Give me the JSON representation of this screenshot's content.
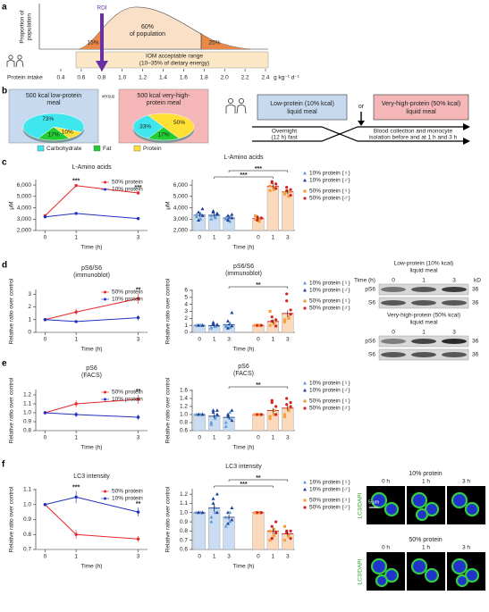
{
  "panel_labels": [
    "a",
    "b",
    "c",
    "d",
    "e",
    "f"
  ],
  "panel_a": {
    "y_label_lines": [
      "Proportion of",
      "population"
    ],
    "rdi": "RDI",
    "left_pct": "15%",
    "center_lines": [
      "60%",
      "of population"
    ],
    "right_pct": "25%",
    "iom_lines": [
      "IOM acceptable range",
      "(10–35% of dietary energy)"
    ],
    "x_label": "Protein intake",
    "ticks": [
      0.4,
      0.6,
      0.8,
      {
        "value": 1,
        "label": "1.0"
      },
      1.2,
      1.4,
      1.6,
      1.8,
      {
        "value": 2,
        "label": "2.0"
      },
      2.2,
      2.4
    ],
    "unit": "g kg⁻¹ d⁻¹"
  },
  "panel_b": {
    "versus": "versus",
    "legend": [
      "Carbohydrate",
      "Fat",
      "Protein"
    ],
    "legend_colors": [
      "#3ee6ee",
      "#22cc33",
      "#ffe033"
    ],
    "low_lines": [
      "Low-protein (10% kcal)",
      "liquid meal"
    ],
    "or": "or",
    "high_lines": [
      "Very-high-protein (50% kcal)",
      "liquid meal"
    ],
    "fast_lines": [
      "Overnight",
      "(12 h) fast"
    ],
    "blood_lines": [
      "Blood collection and monocyte",
      "isolation before and at 1 h and 3 h"
    ]
  },
  "chart_data": [
    {
      "type": "line",
      "title": "L-Amino acids",
      "y_label": "μM",
      "x_label": "Time (h)",
      "x": [
        0,
        1,
        3
      ],
      "xlim": [
        -0.3,
        3.3
      ],
      "xticks": [
        0,
        1,
        3
      ],
      "ylim": [
        2000,
        6400
      ],
      "yticks": [
        {
          "value": 2000,
          "label": "2,000"
        },
        {
          "value": 3000,
          "label": "3,000"
        },
        {
          "value": 4000,
          "label": "4,000"
        },
        {
          "value": 5000,
          "label": "5,000"
        },
        {
          "value": 6000,
          "label": "6,000"
        }
      ],
      "legend": "upper right",
      "series": [
        {
          "name": "50% protein",
          "color": "#e8262a",
          "values": [
            3300,
            5950,
            5300
          ],
          "errors": [
            150,
            100,
            150
          ]
        },
        {
          "name": "10% protein",
          "color": "#1f2fbf",
          "values": [
            3200,
            3500,
            3050
          ],
          "errors": [
            100,
            80,
            100
          ]
        }
      ],
      "significance": [
        {
          "x": 1,
          "label": "***"
        },
        {
          "x": 3,
          "label": "***"
        }
      ]
    },
    {
      "type": "bar",
      "title": "L-Amino acids",
      "y_label": "μM",
      "x_label": "Time (h)",
      "categories": [
        "0",
        "1",
        "3"
      ],
      "ylim": [
        2000,
        6400
      ],
      "yticks": [
        {
          "value": 2000,
          "label": "2,000"
        },
        {
          "value": 3000,
          "label": "3,000"
        },
        {
          "value": 4000,
          "label": "4,000"
        },
        {
          "value": 5000,
          "label": "5,000"
        },
        {
          "value": 6000,
          "label": "6,000"
        }
      ],
      "series": [
        {
          "fill": "#c9dcf2",
          "values": [
            3350,
            3350,
            3100
          ],
          "errors": [
            200,
            150,
            150
          ],
          "points": [
            [
              3400,
              3600,
              3000,
              3900,
              3200,
              2900,
              3500,
              3300
            ],
            [
              3300,
              3700,
              3100,
              3500,
              3000,
              3600,
              3200,
              3400
            ],
            [
              3000,
              3300,
              2800,
              3400,
              3100,
              2900,
              3200,
              3100
            ]
          ]
        },
        {
          "fill": "#fbd9bd",
          "values": [
            3050,
            5900,
            5400
          ],
          "errors": [
            150,
            200,
            200
          ],
          "points": [
            [
              3000,
              3200,
              2800,
              3100,
              3300,
              2900,
              3000,
              3100
            ],
            [
              5900,
              6300,
              5600,
              6100,
              5500,
              6200,
              5800,
              5700
            ],
            [
              5300,
              5800,
              5000,
              5600,
              5200,
              5500,
              5400,
              5100
            ]
          ]
        }
      ],
      "legend_items": [
        {
          "label": "10% protein (♀)",
          "marker": "triangle",
          "color": "#5b9bd5"
        },
        {
          "label": "10% protein (♂)",
          "marker": "triangle",
          "color": "#1f3f99"
        },
        {
          "label": "50% protein (♀)",
          "marker": "square",
          "color": "#f4a042"
        },
        {
          "label": "50% protein (♂)",
          "marker": "circle",
          "color": "#d42020"
        }
      ],
      "brackets": [
        {
          "from": 1,
          "to": 4,
          "label": "***"
        },
        {
          "from": 2,
          "to": 5,
          "label": "***"
        }
      ]
    },
    {
      "type": "line",
      "title": "pS6/S6",
      "subtitle": "(immunoblot)",
      "y_label": "Relative ratio over control",
      "x_label": "Time (h)",
      "x": [
        0,
        1,
        3
      ],
      "xlim": [
        -0.3,
        3.3
      ],
      "xticks": [
        0,
        1,
        3
      ],
      "ylim": [
        0,
        3.3
      ],
      "yticks": [
        0,
        1,
        2,
        3
      ],
      "legend": "upper right",
      "series": [
        {
          "name": "50% protein",
          "color": "#e8262a",
          "values": [
            1,
            1.6,
            2.65
          ],
          "errors": [
            0.05,
            0.25,
            0.4
          ]
        },
        {
          "name": "10% protein",
          "color": "#1f2fbf",
          "values": [
            1,
            0.85,
            1.15
          ],
          "errors": [
            0.05,
            0.1,
            0.2
          ]
        }
      ],
      "significance": [
        {
          "x": 3,
          "label": "**"
        }
      ]
    },
    {
      "type": "bar",
      "title": "pS6/S6",
      "subtitle": "(immunoblot)",
      "y_label": "Relative ratio over control",
      "x_label": "Time (h)",
      "categories": [
        "0",
        "1",
        "3"
      ],
      "ylim": [
        0,
        6
      ],
      "yticks": [
        0,
        1,
        2,
        3,
        4,
        5,
        6
      ],
      "series": [
        {
          "fill": "#c9dcf2",
          "values": [
            1,
            0.95,
            1.1
          ],
          "errors": [
            0.05,
            0.15,
            0.2
          ],
          "points": [
            [
              1,
              1,
              1,
              1,
              1,
              1,
              1,
              1
            ],
            [
              0.6,
              1.2,
              0.8,
              1.0,
              0.7,
              1.4,
              0.9,
              1.1
            ],
            [
              0.8,
              1.6,
              0.7,
              2.8,
              1.0,
              0.6,
              1.3,
              0.9
            ]
          ]
        },
        {
          "fill": "#fbd9bd",
          "values": [
            1,
            1.55,
            2.7
          ],
          "errors": [
            0.05,
            0.3,
            0.45
          ],
          "points": [
            [
              1,
              1,
              1,
              1,
              1,
              1,
              1,
              1
            ],
            [
              1.0,
              2.2,
              1.4,
              0.9,
              3.0,
              1.6,
              1.2,
              1.8
            ],
            [
              1.8,
              4.5,
              2.2,
              3.2,
              1.5,
              5.5,
              2.0,
              2.6
            ]
          ]
        }
      ],
      "legend_items": [
        {
          "label": "10% protein (♀)",
          "marker": "triangle",
          "color": "#5b9bd5"
        },
        {
          "label": "10% protein (♂)",
          "marker": "triangle",
          "color": "#1f3f99"
        },
        {
          "label": "50% protein (♀)",
          "marker": "square",
          "color": "#f4a042"
        },
        {
          "label": "50% protein (♂)",
          "marker": "circle",
          "color": "#d42020"
        }
      ],
      "brackets": [
        {
          "from": 2,
          "to": 5,
          "label": "**"
        }
      ]
    },
    {
      "type": "line",
      "title": "pS6",
      "subtitle": "(FACS)",
      "y_label": "Relative ratio over control",
      "x_label": "Time (h)",
      "x": [
        0,
        1,
        3
      ],
      "xlim": [
        -0.3,
        3.3
      ],
      "xticks": [
        0,
        1,
        3
      ],
      "ylim": [
        0.8,
        1.25
      ],
      "yticks": [
        0.8,
        0.9,
        {
          "value": 1,
          "label": "1.0"
        },
        1.1,
        1.2
      ],
      "legend": "upper right",
      "series": [
        {
          "name": "50% protein",
          "color": "#e8262a",
          "values": [
            1,
            1.1,
            1.15
          ],
          "errors": [
            0.01,
            0.04,
            0.05
          ]
        },
        {
          "name": "10% protein",
          "color": "#1f2fbf",
          "values": [
            1,
            0.98,
            0.95
          ],
          "errors": [
            0.01,
            0.03,
            0.03
          ]
        }
      ],
      "significance": [
        {
          "x": 3,
          "label": "**"
        }
      ]
    },
    {
      "type": "bar",
      "title": "pS6",
      "subtitle": "(FACS)",
      "y_label": "Relative ratio over control",
      "x_label": "Time (h)",
      "categories": [
        "0",
        "1",
        "3"
      ],
      "ylim": [
        0.6,
        1.6
      ],
      "yticks": [
        0.6,
        0.8,
        {
          "value": 1,
          "label": "1.0"
        },
        1.2,
        1.4,
        1.6
      ],
      "series": [
        {
          "fill": "#c9dcf2",
          "values": [
            1,
            0.96,
            0.93
          ],
          "errors": [
            0.01,
            0.05,
            0.05
          ],
          "points": [
            [
              1,
              1,
              1,
              1,
              1,
              1,
              1,
              1
            ],
            [
              0.8,
              1.1,
              0.9,
              1.0,
              0.75,
              1.05,
              0.95,
              1.1
            ],
            [
              0.7,
              1.0,
              0.9,
              1.1,
              0.8,
              0.95,
              1.05,
              0.85
            ]
          ]
        },
        {
          "fill": "#fbd9bd",
          "values": [
            1,
            1.1,
            1.16
          ],
          "errors": [
            0.01,
            0.06,
            0.06
          ],
          "points": [
            [
              1,
              1,
              1,
              1,
              1,
              1,
              1,
              1
            ],
            [
              0.9,
              1.3,
              1.0,
              1.2,
              0.95,
              1.35,
              1.1,
              1.0
            ],
            [
              1.0,
              1.4,
              1.1,
              1.3,
              0.95,
              1.25,
              1.15,
              1.2
            ]
          ]
        }
      ],
      "legend_items": [
        {
          "label": "10% protein (♀)",
          "marker": "triangle",
          "color": "#5b9bd5"
        },
        {
          "label": "10% protein (♂)",
          "marker": "triangle",
          "color": "#1f3f99"
        },
        {
          "label": "50% protein (♀)",
          "marker": "square",
          "color": "#f4a042"
        },
        {
          "label": "50% protein (♂)",
          "marker": "circle",
          "color": "#d42020"
        }
      ],
      "brackets": [
        {
          "from": 2,
          "to": 5,
          "label": "**"
        }
      ]
    },
    {
      "type": "line",
      "title": "LC3 intensity",
      "y_label": "Relative ratio over control",
      "x_label": "Time (h)",
      "x": [
        0,
        1,
        3
      ],
      "xlim": [
        -0.3,
        3.3
      ],
      "xticks": [
        0,
        1,
        3
      ],
      "ylim": [
        0.7,
        1.1
      ],
      "yticks": [
        0.7,
        0.8,
        0.9,
        {
          "value": 1,
          "label": "1.0"
        },
        1.1
      ],
      "legend": "upper right",
      "series": [
        {
          "name": "50% protein",
          "color": "#e8262a",
          "values": [
            1,
            0.8,
            0.77
          ],
          "errors": [
            0.005,
            0.03,
            0.02
          ]
        },
        {
          "name": "10% protein",
          "color": "#1f2fbf",
          "values": [
            1,
            1.05,
            0.95
          ],
          "errors": [
            0.005,
            0.04,
            0.03
          ]
        }
      ],
      "significance": [
        {
          "x": 1,
          "label": "***"
        },
        {
          "x": 3,
          "label": "**"
        }
      ]
    },
    {
      "type": "bar",
      "title": "LC3 intensity",
      "y_label": "Relative ratio over control",
      "x_label": "Time (h)",
      "categories": [
        "0",
        "1",
        "3"
      ],
      "ylim": [
        0.6,
        1.25
      ],
      "yticks": [
        0.6,
        0.7,
        0.8,
        0.9,
        {
          "value": 1,
          "label": "1.0"
        },
        1.1,
        1.2
      ],
      "series": [
        {
          "fill": "#c9dcf2",
          "values": [
            1,
            1.05,
            0.95
          ],
          "errors": [
            0.005,
            0.04,
            0.03
          ],
          "points": [
            [
              1,
              1,
              1,
              1,
              1,
              1,
              1,
              1
            ],
            [
              0.95,
              1.15,
              1.0,
              1.2,
              0.9,
              1.1,
              1.05,
              1.0
            ],
            [
              0.85,
              1.0,
              0.9,
              1.05,
              0.95,
              0.88,
              1.0,
              0.92
            ]
          ]
        },
        {
          "fill": "#fbd9bd",
          "values": [
            1,
            0.8,
            0.77
          ],
          "errors": [
            0.005,
            0.03,
            0.02
          ],
          "points": [
            [
              1,
              1,
              1,
              1,
              1,
              1,
              1,
              1
            ],
            [
              0.7,
              0.85,
              0.75,
              0.9,
              0.8,
              0.72,
              0.82,
              0.78
            ],
            [
              0.7,
              0.8,
              0.75,
              0.72,
              0.85,
              0.78,
              0.74,
              0.8
            ]
          ]
        }
      ],
      "legend_items": [
        {
          "label": "10% protein (♀)",
          "marker": "triangle",
          "color": "#5b9bd5"
        },
        {
          "label": "10% protein (♂)",
          "marker": "triangle",
          "color": "#1f3f99"
        },
        {
          "label": "50% protein (♀)",
          "marker": "square",
          "color": "#f4a042"
        },
        {
          "label": "50% protein (♂)",
          "marker": "circle",
          "color": "#d42020"
        }
      ],
      "brackets": [
        {
          "from": 1,
          "to": 4,
          "label": "***"
        },
        {
          "from": 2,
          "to": 5,
          "label": "**"
        }
      ]
    },
    {
      "type": "pie",
      "title_lines": [
        "500 kcal low-protein",
        "meal"
      ],
      "values": [
        73,
        17,
        10
      ],
      "value_labels": [
        "73%",
        "17%",
        "10%"
      ],
      "colors": [
        "#3ee6ee",
        "#22cc33",
        "#ffe033"
      ]
    },
    {
      "type": "pie",
      "title_lines": [
        "500 kcal very-high-",
        "protein meal"
      ],
      "values": [
        33,
        17,
        50
      ],
      "value_labels": [
        "33%",
        "17%",
        "50%"
      ],
      "colors": [
        "#3ee6ee",
        "#22cc33",
        "#ffe033"
      ]
    }
  ],
  "blots": [
    {
      "title_lines": [
        "Low-protein (10% kcal)",
        "liquid meal"
      ],
      "time_label": "Time (h)",
      "times": [
        "0",
        "1",
        "3"
      ],
      "kd_label": "kD",
      "rows": [
        {
          "name": "pS6",
          "kd": "36"
        },
        {
          "name": "S6",
          "kd": "36"
        }
      ]
    },
    {
      "title_lines": [
        "Very-high-protein (50% kcal)",
        "liquid meal"
      ],
      "times": [
        "0",
        "1",
        "3"
      ],
      "rows": [
        {
          "name": "pS6",
          "kd": "36"
        },
        {
          "name": "S6",
          "kd": "36"
        }
      ]
    }
  ],
  "microscopy": {
    "groups": [
      {
        "title": "10% protein",
        "times": [
          "0 h",
          "1 h",
          "3 h"
        ]
      },
      {
        "title": "50% protein",
        "times": [
          "0 h",
          "1 h",
          "3 h"
        ]
      }
    ],
    "stain": "LC3/DAPI",
    "scale": "5 μm"
  }
}
